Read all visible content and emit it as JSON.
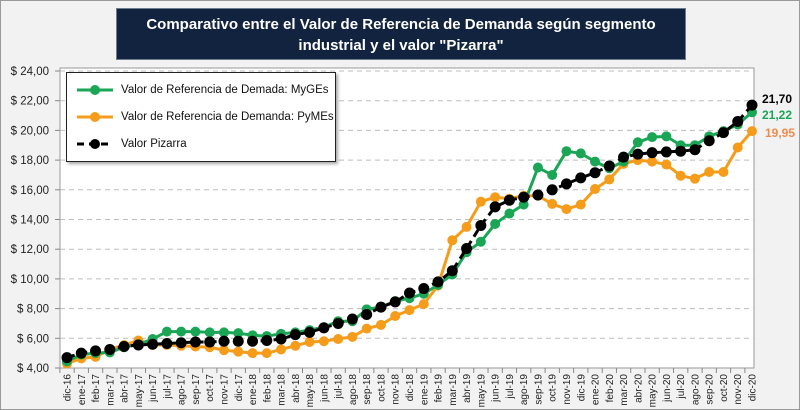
{
  "title": "Comparativo entre el Valor de Referencia de Demanda según segmento industrial y el valor \"Pizarra\"",
  "chart_data": {
    "type": "line",
    "title": "Comparativo entre el Valor de Referencia de Demanda según segmento industrial y el valor \"Pizarra\"",
    "xlabel": "",
    "ylabel": "",
    "ylim": [
      4,
      24
    ],
    "yticks": [
      4,
      6,
      8,
      10,
      12,
      14,
      16,
      18,
      20,
      22,
      24
    ],
    "ytick_labels": [
      "$ 4,00",
      "$ 6,00",
      "$ 8,00",
      "$ 10,00",
      "$ 12,00",
      "$ 14,00",
      "$ 16,00",
      "$ 18,00",
      "$ 20,00",
      "$ 22,00",
      "$ 24,00"
    ],
    "grid": "horizontal-dashed",
    "legend_position": "top-left",
    "categories": [
      "dic-16",
      "ene-17",
      "feb-17",
      "mar-17",
      "abr-17",
      "may-17",
      "jun-17",
      "jul-17",
      "ago-17",
      "sep-17",
      "oct-17",
      "nov-17",
      "dic-17",
      "ene-18",
      "feb-18",
      "mar-18",
      "abr-18",
      "may-18",
      "jun-18",
      "jul-18",
      "ago-18",
      "sep-18",
      "oct-18",
      "nov-18",
      "dic-18",
      "ene-19",
      "feb-19",
      "mar-19",
      "abr-19",
      "may-19",
      "jun-19",
      "jul-19",
      "ago-19",
      "sep-19",
      "oct-19",
      "nov-19",
      "dic-19",
      "ene-20",
      "feb-20",
      "mar-20",
      "abr-20",
      "may-20",
      "jun-20",
      "jul-20",
      "ago-20",
      "sep-20",
      "oct-20",
      "nov-20",
      "dic-20"
    ],
    "series": [
      {
        "name": "Valor de Referencia de Demada: MyGEs",
        "color": "#1aa655",
        "dash": "solid",
        "values": [
          4.45,
          4.9,
          5.0,
          5.05,
          5.4,
          5.6,
          5.95,
          6.45,
          6.45,
          6.45,
          6.4,
          6.4,
          6.35,
          6.2,
          6.15,
          6.3,
          6.4,
          6.55,
          6.75,
          7.15,
          7.15,
          7.95,
          8.1,
          8.5,
          8.7,
          9.0,
          9.6,
          10.3,
          11.8,
          12.5,
          13.7,
          14.4,
          15.0,
          17.5,
          17.0,
          18.6,
          18.45,
          17.9,
          17.45,
          17.9,
          19.2,
          19.55,
          19.6,
          19.0,
          19.0,
          19.6,
          19.95,
          20.4,
          21.22
        ],
        "end_label": "21,22"
      },
      {
        "name": "Valor de Referencia de Demanda: PyMEs",
        "color": "#f59c1a",
        "dash": "solid",
        "values": [
          4.3,
          4.65,
          4.75,
          5.25,
          5.55,
          5.85,
          5.55,
          5.55,
          5.5,
          5.45,
          5.4,
          5.2,
          5.1,
          5.0,
          5.0,
          5.25,
          5.5,
          5.75,
          5.8,
          5.95,
          6.1,
          6.65,
          6.9,
          7.5,
          7.9,
          8.3,
          9.55,
          12.6,
          13.5,
          15.2,
          15.5,
          15.4,
          15.6,
          15.6,
          15.05,
          14.7,
          15.0,
          16.05,
          16.7,
          17.75,
          18.0,
          17.9,
          17.7,
          16.95,
          16.75,
          17.2,
          17.2,
          18.85,
          19.95
        ],
        "end_label": "19,95"
      },
      {
        "name": "Valor Pizarra",
        "color": "#000000",
        "dash": "dashed",
        "values": [
          4.7,
          5.0,
          5.15,
          5.25,
          5.45,
          5.55,
          5.6,
          5.65,
          5.7,
          5.75,
          5.75,
          5.8,
          5.8,
          5.8,
          5.85,
          5.95,
          6.25,
          6.4,
          6.7,
          7.0,
          7.3,
          7.6,
          8.1,
          8.45,
          9.05,
          9.35,
          9.8,
          10.55,
          12.05,
          13.6,
          14.85,
          15.3,
          15.5,
          15.65,
          16.0,
          16.4,
          16.8,
          17.15,
          17.6,
          18.2,
          18.4,
          18.5,
          18.55,
          18.6,
          18.7,
          19.3,
          19.85,
          20.6,
          21.7
        ],
        "end_label": "21,70"
      }
    ]
  }
}
